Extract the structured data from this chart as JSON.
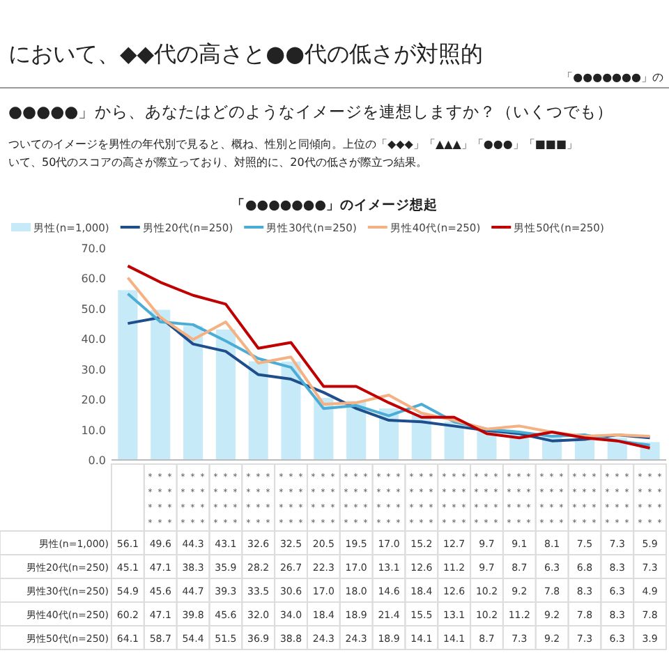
{
  "chart_data": {
    "type": "bar",
    "title": "「●●●●●●●」のイメージ想起",
    "annotations": [
      "において、◆◆代の高さと●●代の低さが対照的",
      "「●●●●●●●」の",
      "●●●●●」から、あなたはどのようなイメージを連想しますか？（いくつでも）",
      "ついてのイメージを男性の年代別で見ると、概ね、性別と同傾向。上位の「◆◆◆」「▲▲▲」「●●●」「■■■」",
      "いて、50代のスコアの高さが際立っており、対照的に、20代の低さが際立つ結果。"
    ],
    "categories": [
      null,
      "＊＊＊＊＊＊＊＊＊＊＊＊",
      "＊＊＊＊＊＊＊＊＊＊＊＊",
      "＊＊＊＊＊＊＊＊＊＊＊＊",
      "＊＊＊＊＊＊＊＊＊＊＊＊",
      "＊＊＊＊＊＊＊＊＊＊＊＊",
      "＊＊＊＊＊＊＊＊＊＊＊＊",
      "＊＊＊＊＊＊＊＊＊＊＊＊",
      "＊＊＊＊＊＊＊＊＊＊＊＊",
      "＊＊＊＊＊＊＊＊＊＊＊＊",
      "＊＊＊＊＊＊＊＊＊＊＊＊",
      "＊＊＊＊＊＊＊＊＊＊＊＊",
      "＊＊＊＊＊＊＊＊＊＊＊＊",
      "＊＊＊＊＊＊＊＊＊＊＊＊",
      "＊＊＊＊＊＊＊＊＊＊＊＊",
      "＊＊＊＊＊＊＊＊＊＊＊＊",
      "＊＊＊＊＊＊＊＊＊＊＊＊"
    ],
    "series": [
      {
        "name": "男性(n=1,000)",
        "color": "#c6eaf8",
        "values": [
          56.1,
          49.6,
          44.3,
          43.1,
          32.6,
          32.5,
          20.5,
          19.5,
          17.0,
          15.2,
          12.7,
          9.7,
          9.1,
          8.1,
          7.5,
          7.3,
          5.9
        ],
        "value_labels": [
          "56.1",
          "49.6",
          "44.3",
          "43.1",
          "32.6",
          "32.5",
          "20.5",
          "19.5",
          "17.0",
          "15.2",
          "12.7",
          "9.7",
          "9.1",
          "8.1",
          "7.5",
          "7.3",
          "5.9"
        ]
      },
      {
        "name": "男性20代(n=250)",
        "type": "line",
        "color": "#1f4e8c",
        "values": [
          45.1,
          47.1,
          38.3,
          35.9,
          28.2,
          26.7,
          22.3,
          17.0,
          13.1,
          12.6,
          11.2,
          9.7,
          8.7,
          6.3,
          6.8,
          8.3,
          7.3
        ],
        "value_labels": [
          "45.1",
          "47.1",
          "38.3",
          "35.9",
          "28.2",
          "26.7",
          "22.3",
          "17.0",
          "13.1",
          "12.6",
          "11.2",
          "9.7",
          "8.7",
          "6.3",
          "6.8",
          "8.3",
          "7.3"
        ]
      },
      {
        "name": "男性30代(n=250)",
        "type": "line",
        "color": "#4bacd6",
        "values": [
          54.9,
          45.6,
          44.7,
          39.3,
          33.5,
          30.6,
          17.0,
          18.0,
          14.6,
          18.4,
          12.6,
          10.2,
          9.2,
          7.8,
          8.3,
          6.3,
          4.9
        ],
        "value_labels": [
          "54.9",
          "45.6",
          "44.7",
          "39.3",
          "33.5",
          "30.6",
          "17.0",
          "18.0",
          "14.6",
          "18.4",
          "12.6",
          "10.2",
          "9.2",
          "7.8",
          "8.3",
          "6.3",
          "4.9"
        ]
      },
      {
        "name": "男性40代(n=250)",
        "type": "line",
        "color": "#f4b183",
        "values": [
          60.2,
          47.1,
          39.8,
          45.6,
          32.0,
          34.0,
          18.4,
          18.9,
          21.4,
          15.5,
          13.1,
          10.2,
          11.2,
          9.2,
          7.8,
          8.3,
          7.8
        ],
        "value_labels": [
          "60.2",
          "47.1",
          "39.8",
          "45.6",
          "32.0",
          "34.0",
          "18.4",
          "18.9",
          "21.4",
          "15.5",
          "13.1",
          "10.2",
          "11.2",
          "9.2",
          "7.8",
          "8.3",
          "7.8"
        ]
      },
      {
        "name": "男性50代(n=250)",
        "type": "line",
        "color": "#c00000",
        "values": [
          64.1,
          58.7,
          54.4,
          51.5,
          36.9,
          38.8,
          24.3,
          24.3,
          18.9,
          14.1,
          14.1,
          8.7,
          7.3,
          9.2,
          7.3,
          6.3,
          3.9
        ],
        "value_labels": [
          "64.1",
          "58.7",
          "54.4",
          "51.5",
          "36.9",
          "38.8",
          "24.3",
          "24.3",
          "18.9",
          "14.1",
          "14.1",
          "8.7",
          "7.3",
          "9.2",
          "7.3",
          "6.3",
          "3.9"
        ]
      }
    ],
    "ylim": [
      0,
      70
    ],
    "yticks": [
      {
        "value": 0,
        "label": "0.0"
      },
      {
        "value": 10,
        "label": "10.0"
      },
      {
        "value": 20,
        "label": "20.0"
      },
      {
        "value": 30,
        "label": "30.0"
      },
      {
        "value": 40,
        "label": "40.0"
      },
      {
        "value": 50,
        "label": "50.0"
      },
      {
        "value": 60,
        "label": "60.0"
      },
      {
        "value": 70,
        "label": "70.0"
      }
    ],
    "legend": "top"
  }
}
